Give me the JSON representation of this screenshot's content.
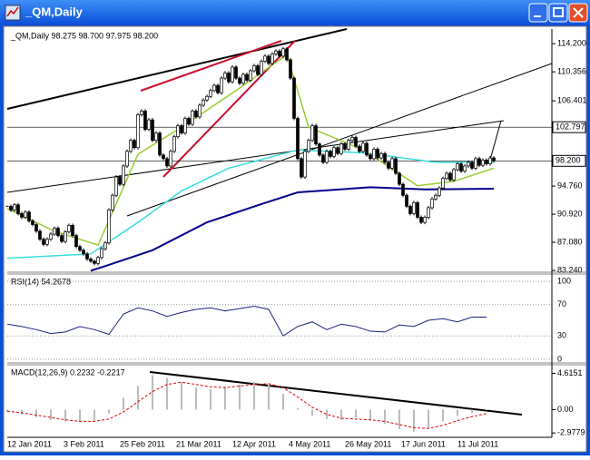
{
  "window": {
    "title": "_QM,Daily"
  },
  "main_pane": {
    "label": "_QM,Daily  98.275 98.700 97.975 98.200",
    "ylim": [
      83.0,
      116.2
    ],
    "yticks": [
      {
        "value": 114.2,
        "label": "114.200"
      },
      {
        "value": 110.356,
        "label": "110.356"
      },
      {
        "value": 106.401,
        "label": "106.401"
      },
      {
        "value": 94.76,
        "label": "94.760"
      },
      {
        "value": 90.92,
        "label": "90.920"
      },
      {
        "value": 87.08,
        "label": "87.080"
      },
      {
        "value": 83.24,
        "label": "83.240"
      }
    ],
    "price_marks": [
      {
        "value": 102.797,
        "label": "102.797"
      },
      {
        "value": 98.2,
        "label": "98.200"
      }
    ],
    "closes": [
      92.0,
      91.5,
      92.2,
      91.0,
      90.5,
      91.2,
      90.0,
      89.5,
      88.6,
      87.5,
      86.8,
      87.5,
      88.2,
      89.0,
      88.0,
      87.2,
      88.5,
      89.4,
      88.0,
      86.5,
      86.0,
      85.5,
      84.8,
      84.5,
      84.2,
      85.0,
      86.2,
      87.0,
      91.5,
      93.5,
      96.0,
      95.0,
      97.5,
      99.5,
      101.0,
      100.0,
      104.5,
      105.0,
      102.5,
      103.8,
      101.0,
      102.0,
      99.0,
      98.5,
      97.5,
      99.5,
      101.5,
      103.0,
      102.0,
      104.0,
      103.2,
      105.0,
      104.2,
      105.8,
      106.5,
      107.0,
      107.8,
      108.5,
      107.5,
      109.5,
      110.2,
      109.0,
      111.0,
      109.5,
      108.8,
      110.0,
      109.2,
      110.5,
      111.2,
      110.0,
      111.8,
      112.5,
      111.5,
      112.8,
      113.2,
      112.5,
      113.5,
      112.0,
      109.5,
      104.0,
      98.5,
      96.0,
      99.5,
      101.0,
      103.0,
      100.5,
      99.0,
      98.0,
      99.5,
      98.8,
      100.0,
      99.2,
      100.5,
      99.8,
      101.0,
      101.4,
      100.2,
      99.5,
      100.6,
      99.0,
      98.5,
      99.8,
      98.6,
      99.2,
      98.0,
      97.2,
      98.5,
      96.5,
      95.0,
      93.5,
      92.0,
      91.0,
      92.5,
      90.5,
      89.8,
      90.5,
      91.8,
      93.0,
      93.5,
      94.5,
      95.8,
      96.5,
      95.6,
      97.0,
      97.8,
      96.8,
      97.5,
      98.0,
      97.2,
      98.5,
      97.6,
      98.3,
      97.8,
      98.6,
      98.2
    ],
    "ma_lines": [
      {
        "color": "#00008b",
        "x": [
          23,
          28,
          40,
          55,
          70,
          80,
          100,
          115,
          134
        ],
        "values": [
          83.2,
          84.0,
          86.0,
          89.8,
          92.3,
          93.9,
          94.6,
          94.3,
          94.4
        ]
      },
      {
        "color": "#33dddd",
        "x": [
          0,
          23,
          36,
          48,
          61,
          80,
          98,
          118,
          134
        ],
        "values": [
          84.9,
          85.5,
          89.8,
          94.1,
          97.2,
          99.7,
          99.3,
          98.0,
          98.0
        ]
      },
      {
        "color": "#99cc33",
        "x": [
          0,
          13,
          25,
          36,
          48,
          63,
          77,
          83,
          98,
          113,
          123,
          134
        ],
        "values": [
          91.7,
          88.6,
          86.7,
          99.1,
          102.8,
          107.8,
          112.7,
          102.8,
          99.7,
          94.8,
          95.4,
          97.2
        ]
      }
    ]
  },
  "rsi_pane": {
    "label": "RSI(14) 54.2678",
    "ylim": [
      0,
      100
    ],
    "yticks": [
      100,
      70,
      30,
      0
    ],
    "values": [
      45,
      42,
      38,
      33,
      35,
      42,
      38,
      32,
      58,
      66,
      62,
      55,
      60,
      64,
      66,
      62,
      65,
      68,
      64,
      30,
      42,
      48,
      38,
      45,
      42,
      36,
      35,
      44,
      42,
      50,
      52,
      48,
      54,
      54
    ]
  },
  "macd_pane": {
    "label": "MACD(12,26,9) 0.2232 -0.2217",
    "ylim": [
      -3.3,
      5.6
    ],
    "yticks": [
      {
        "value": 4.6151,
        "label": "4.6151"
      },
      {
        "value": 0,
        "label": "0.00"
      },
      {
        "value": -2.9779,
        "label": "-2.9779"
      }
    ],
    "histogram": [
      -0.3,
      -0.6,
      -1.0,
      -1.3,
      -1.5,
      -1.6,
      -1.4,
      -0.5,
      1.5,
      3.0,
      4.4,
      4.0,
      3.5,
      2.8,
      2.6,
      2.9,
      3.2,
      3.5,
      3.2,
      2.0,
      0.2,
      -0.8,
      -1.2,
      -1.3,
      -1.0,
      -1.4,
      -1.8,
      -2.5,
      -2.8,
      -2.3,
      -1.5,
      -0.8,
      -0.4,
      0.0
    ],
    "signal": [
      -0.2,
      -0.4,
      -0.7,
      -1.0,
      -1.3,
      -1.5,
      -1.5,
      -1.2,
      -0.3,
      1.0,
      2.3,
      3.2,
      3.5,
      3.2,
      2.9,
      2.8,
      3.0,
      3.2,
      3.3,
      2.8,
      1.6,
      0.3,
      -0.6,
      -1.1,
      -1.2,
      -1.3,
      -1.5,
      -1.9,
      -2.3,
      -2.4,
      -2.0,
      -1.4,
      -0.9,
      -0.5
    ]
  },
  "dates": [
    "12 Jan 2011",
    "3 Feb 2011",
    "25 Feb 2011",
    "21 Mar 2011",
    "12 Apr 2011",
    "4 May 2011",
    "26 May 2011",
    "17 Jun 2011",
    "11 Jul 2011"
  ]
}
